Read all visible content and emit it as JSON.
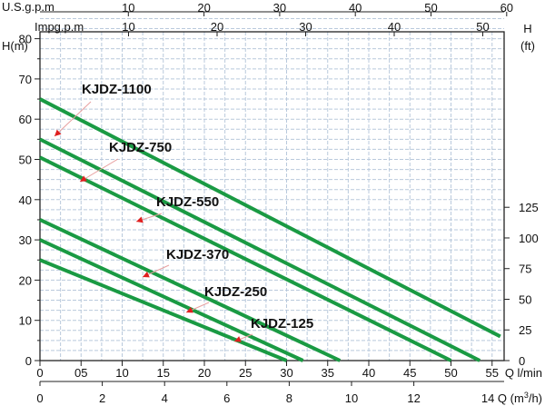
{
  "chart_data": {
    "type": "line",
    "title": "",
    "colors": {
      "curve": "#1a9a43",
      "grid": "#b9c9dc",
      "arrow": "#e01f1f",
      "leader": "#e8a0a0"
    },
    "grid": true,
    "axes": {
      "left_unit": "H(m)",
      "right_unit_top": "H",
      "right_unit_bottom": "(ft)",
      "lpm_label": "Q l/min",
      "m3h_label": "Q (m3/h)",
      "m3h_label_prefix": "14 Q (m",
      "m3h_label_sup": "3",
      "m3h_label_suffix": "/h)",
      "usgpm_label": "U.S.g.p.m",
      "impgpm_label": "Impg.p.m",
      "ylim_m": [
        0,
        85
      ],
      "xlim_lpm": [
        0,
        56
      ],
      "left_ticks": [
        "0",
        "10",
        "20",
        "30",
        "40",
        "50",
        "60",
        "70",
        "80"
      ],
      "right_ticks": [
        "0",
        "25",
        "50",
        "75",
        "100",
        "125"
      ],
      "lpm_ticks": [
        "0",
        "05",
        "10",
        "15",
        "20",
        "25",
        "30",
        "35",
        "40",
        "45",
        "50",
        "55"
      ],
      "m3h_ticks": [
        "0",
        "2",
        "4",
        "6",
        "8",
        "10",
        "12"
      ],
      "usgpm_ticks": [
        "10",
        "20",
        "30",
        "40",
        "50",
        "60"
      ],
      "impgpm_ticks": [
        "10",
        "20",
        "30",
        "40",
        "50"
      ]
    },
    "series": [
      {
        "name": "KJDZ-1100",
        "x": [
          0,
          56
        ],
        "y": [
          65,
          6
        ]
      },
      {
        "name": "KJDZ-750",
        "x": [
          0,
          53.5
        ],
        "y": [
          55,
          0
        ]
      },
      {
        "name": "KJDZ-550",
        "x": [
          0,
          50
        ],
        "y": [
          50.5,
          0
        ]
      },
      {
        "name": "KJDZ-370",
        "x": [
          0,
          36.5
        ],
        "y": [
          35,
          0
        ]
      },
      {
        "name": "KJDZ-250",
        "x": [
          0,
          32
        ],
        "y": [
          30,
          0
        ]
      },
      {
        "name": "KJDZ-125",
        "x": [
          0,
          30
        ],
        "y": [
          25,
          0
        ]
      }
    ]
  }
}
